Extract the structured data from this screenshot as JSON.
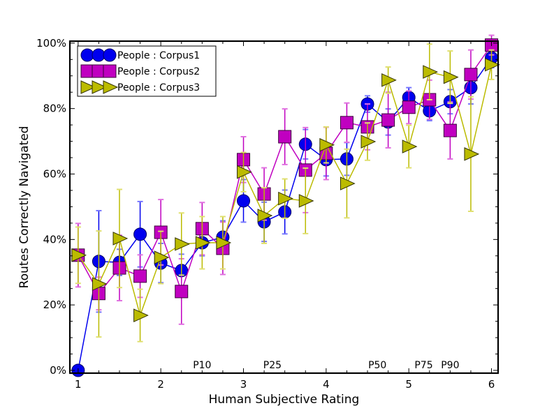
{
  "chart_data": {
    "type": "line",
    "title": "",
    "xlabel": "Human Subjective Rating",
    "ylabel": "Routes Correctly Navigated",
    "xlim": [
      0.9,
      6.08
    ],
    "ylim": [
      -0.85,
      100.6
    ],
    "x_ticks": [
      1,
      2,
      3,
      4,
      5,
      6
    ],
    "x_tick_labels": [
      "1",
      "2",
      "3",
      "4",
      "5",
      "6"
    ],
    "x_minor_step": 0.25,
    "y_ticks": [
      0,
      20,
      40,
      60,
      80,
      100
    ],
    "y_tick_labels": [
      "0%",
      "20%",
      "40%",
      "60%",
      "80%",
      "100%"
    ],
    "y_minor_step": 5,
    "grid": false,
    "legend_position": "top-left",
    "x": [
      1,
      1.25,
      1.5,
      1.75,
      2,
      2.25,
      2.5,
      2.75,
      3,
      3.25,
      3.5,
      3.75,
      4,
      4.25,
      4.5,
      4.75,
      5,
      5.25,
      5.5,
      5.75,
      6
    ],
    "series": [
      {
        "name": "People : Corpus1",
        "marker": "circle",
        "color": "#0000ee",
        "edge_color": "#000066",
        "values": [
          0,
          33.3,
          33,
          41.6,
          32.8,
          30.5,
          39,
          40.7,
          51.8,
          45.4,
          48.4,
          69.1,
          64.4,
          64.6,
          81.4,
          75.9,
          83.4,
          79.3,
          82.1,
          86.4,
          95.5
        ],
        "errors": [
          0,
          15.5,
          4,
          10,
          6,
          5,
          4,
          5,
          6.5,
          6,
          6.7,
          4.5,
          5,
          5,
          2.5,
          4,
          3,
          3,
          3.7,
          5,
          3
        ]
      },
      {
        "name": "People : Corpus2",
        "marker": "square",
        "color": "#c000c0",
        "edge_color": "#3a003a",
        "values": [
          35.2,
          23.5,
          31.3,
          28.8,
          42.2,
          24.1,
          43.3,
          37.3,
          64.4,
          53.9,
          71.4,
          61.2,
          66.3,
          75.7,
          74.4,
          76.5,
          80.4,
          82.7,
          73.3,
          90.4,
          99.4
        ],
        "errors": [
          9.7,
          5,
          10,
          6.5,
          10,
          10,
          8,
          8,
          7,
          8,
          8.5,
          13,
          8,
          6,
          7,
          8.5,
          5,
          6,
          8.7,
          7.5,
          3
        ]
      },
      {
        "name": "People : Corpus3",
        "marker": "triangle-right",
        "color": "#bbbb00",
        "edge_color": "#333300",
        "values": [
          35.2,
          26.4,
          40.3,
          16.8,
          34.5,
          38.6,
          39,
          39,
          60.6,
          47.3,
          52.5,
          51.8,
          68.9,
          57.1,
          69.9,
          88.7,
          68.4,
          91.2,
          89.6,
          66.1,
          93.4
        ],
        "errors": [
          8.6,
          16.2,
          15,
          8,
          8,
          9.5,
          8,
          8,
          6,
          8.5,
          6,
          10,
          5.5,
          10.5,
          5.7,
          4,
          6.5,
          8.5,
          8,
          17.5,
          4.5
        ]
      }
    ],
    "annotations": [
      {
        "text": "P10",
        "x": 2.5
      },
      {
        "text": "P25",
        "x": 3.35
      },
      {
        "text": "P50",
        "x": 4.62
      },
      {
        "text": "P75",
        "x": 5.18
      },
      {
        "text": "P90",
        "x": 5.5
      }
    ]
  }
}
